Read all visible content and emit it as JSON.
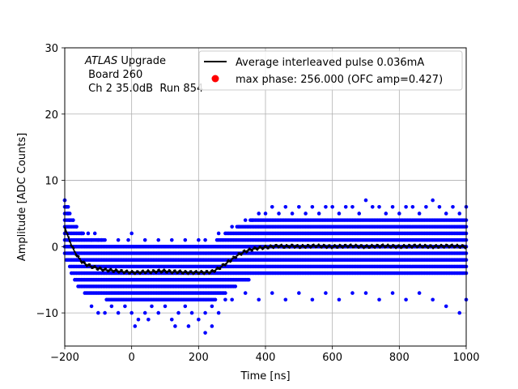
{
  "chart_data": {
    "type": "scatter",
    "xlabel": "Time [ns]",
    "ylabel": "Amplitude [ADC Counts]",
    "xlim": [
      -200,
      1000
    ],
    "ylim": [
      -15,
      30
    ],
    "x_ticks": [
      -200,
      0,
      200,
      400,
      600,
      800,
      1000
    ],
    "y_ticks": [
      -10,
      0,
      10,
      20,
      30
    ],
    "x_tick_labels": [
      "−200",
      "0",
      "200",
      "400",
      "600",
      "800",
      "1000"
    ],
    "y_tick_labels": [
      "−10",
      "0",
      "10",
      "20",
      "30"
    ],
    "grid": true,
    "legend_position": "top-right",
    "annotation": {
      "atlas": "ATLAS",
      "line1_rest": " Upgrade",
      "line2": " Board 260",
      "line3": " Ch 2 35.0dB  Run 854"
    },
    "series": [
      {
        "name": "Average interleaved pulse 0.036mA",
        "kind": "line",
        "color": "#000000",
        "x": [
          -200,
          -190,
          -180,
          -170,
          -160,
          -150,
          -140,
          -120,
          -100,
          -80,
          -60,
          -40,
          -20,
          0,
          20,
          40,
          60,
          80,
          100,
          120,
          140,
          160,
          180,
          200,
          220,
          240,
          260,
          280,
          300,
          320,
          340,
          360,
          380,
          400,
          420,
          440,
          460,
          480,
          500,
          550,
          600,
          650,
          700,
          750,
          800,
          850,
          900,
          950,
          1000
        ],
        "y": [
          3.0,
          1.5,
          0.2,
          -0.8,
          -1.6,
          -2.2,
          -2.6,
          -3.0,
          -3.3,
          -3.5,
          -3.6,
          -3.7,
          -3.8,
          -3.9,
          -3.9,
          -3.8,
          -3.8,
          -3.7,
          -3.7,
          -3.8,
          -3.8,
          -3.9,
          -3.9,
          -3.9,
          -3.9,
          -3.8,
          -3.3,
          -2.6,
          -1.9,
          -1.2,
          -0.7,
          -0.4,
          -0.2,
          -0.1,
          0.0,
          0.1,
          0.0,
          0.1,
          0.0,
          0.1,
          0.0,
          0.1,
          0.0,
          0.1,
          0.0,
          0.1,
          0.0,
          0.1,
          0.0
        ]
      },
      {
        "name": "max phase: 256.000 (OFC amp=0.427)",
        "kind": "marker",
        "color": "#ff0000"
      },
      {
        "name": "samples",
        "kind": "scatter",
        "color": "#0000ff",
        "points": [
          [
            -200,
            7
          ],
          [
            -195,
            6
          ],
          [
            -190,
            5
          ],
          [
            -185,
            4
          ],
          [
            -175,
            4
          ],
          [
            -165,
            3
          ],
          [
            -150,
            2
          ],
          [
            -130,
            2
          ],
          [
            -120,
            1
          ],
          [
            -110,
            2
          ],
          [
            -100,
            1
          ],
          [
            -90,
            1
          ],
          [
            -40,
            1
          ],
          [
            -10,
            1
          ],
          [
            0,
            2
          ],
          [
            40,
            1
          ],
          [
            80,
            1
          ],
          [
            120,
            1
          ],
          [
            160,
            1
          ],
          [
            200,
            1
          ],
          [
            220,
            1
          ],
          [
            260,
            2
          ],
          [
            280,
            2
          ],
          [
            300,
            3
          ],
          [
            320,
            3
          ],
          [
            340,
            4
          ],
          [
            360,
            4
          ],
          [
            380,
            5
          ],
          [
            400,
            5
          ],
          [
            420,
            6
          ],
          [
            440,
            5
          ],
          [
            460,
            6
          ],
          [
            480,
            5
          ],
          [
            500,
            6
          ],
          [
            520,
            5
          ],
          [
            540,
            6
          ],
          [
            560,
            5
          ],
          [
            580,
            6
          ],
          [
            600,
            6
          ],
          [
            620,
            5
          ],
          [
            640,
            6
          ],
          [
            660,
            6
          ],
          [
            680,
            5
          ],
          [
            700,
            7
          ],
          [
            720,
            6
          ],
          [
            740,
            6
          ],
          [
            760,
            5
          ],
          [
            780,
            6
          ],
          [
            800,
            5
          ],
          [
            820,
            6
          ],
          [
            840,
            6
          ],
          [
            860,
            5
          ],
          [
            880,
            6
          ],
          [
            900,
            7
          ],
          [
            920,
            6
          ],
          [
            940,
            5
          ],
          [
            960,
            6
          ],
          [
            980,
            5
          ],
          [
            1000,
            6
          ],
          [
            -120,
            -9
          ],
          [
            -100,
            -10
          ],
          [
            -80,
            -10
          ],
          [
            -60,
            -9
          ],
          [
            -40,
            -10
          ],
          [
            -20,
            -9
          ],
          [
            0,
            -10
          ],
          [
            20,
            -11
          ],
          [
            40,
            -10
          ],
          [
            60,
            -9
          ],
          [
            80,
            -10
          ],
          [
            100,
            -9
          ],
          [
            120,
            -11
          ],
          [
            140,
            -10
          ],
          [
            160,
            -9
          ],
          [
            180,
            -10
          ],
          [
            200,
            -11
          ],
          [
            220,
            -10
          ],
          [
            240,
            -9
          ],
          [
            260,
            -10
          ],
          [
            280,
            -8
          ],
          [
            300,
            -8
          ],
          [
            340,
            -7
          ],
          [
            380,
            -8
          ],
          [
            420,
            -7
          ],
          [
            460,
            -8
          ],
          [
            500,
            -7
          ],
          [
            540,
            -8
          ],
          [
            580,
            -7
          ],
          [
            620,
            -8
          ],
          [
            660,
            -7
          ],
          [
            700,
            -7
          ],
          [
            740,
            -8
          ],
          [
            780,
            -7
          ],
          [
            820,
            -8
          ],
          [
            860,
            -7
          ],
          [
            900,
            -8
          ],
          [
            940,
            -9
          ],
          [
            980,
            -10
          ],
          [
            1000,
            -8
          ],
          [
            10,
            -12
          ],
          [
            130,
            -12
          ],
          [
            220,
            -13
          ],
          [
            240,
            -12
          ],
          [
            50,
            -11
          ],
          [
            170,
            -12
          ]
        ]
      }
    ]
  }
}
